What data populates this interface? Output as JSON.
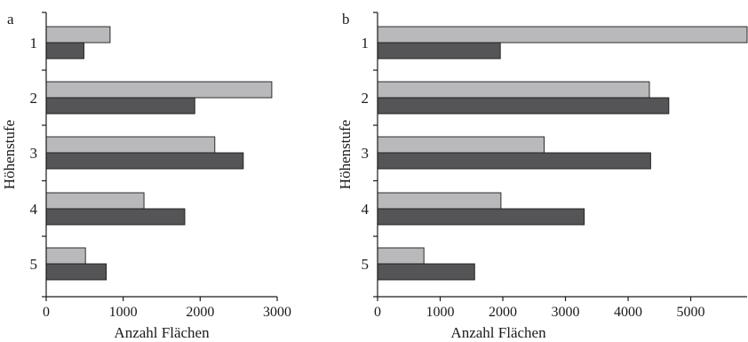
{
  "figure": {
    "ylabel": "Höhenstufe",
    "xlabel": "Anzahl Flächen"
  },
  "chart_data": [
    {
      "panel": "a",
      "type": "bar",
      "orientation": "horizontal",
      "categories": [
        "1",
        "2",
        "3",
        "4",
        "5"
      ],
      "series": [
        {
          "color": "#b9b9bb",
          "values": [
            830,
            2930,
            2190,
            1270,
            510
          ]
        },
        {
          "color": "#555557",
          "values": [
            490,
            1930,
            2560,
            1800,
            780
          ]
        }
      ],
      "xlabel": "Anzahl Flächen",
      "ylabel": "Höhenstufe",
      "xlim": [
        0,
        3000
      ],
      "xticks": [
        0,
        1000,
        2000,
        3000
      ],
      "xtick_labels": [
        "0",
        "1000",
        "2000",
        "3000"
      ],
      "grid": false,
      "legend": "none"
    },
    {
      "panel": "b",
      "type": "bar",
      "orientation": "horizontal",
      "categories": [
        "1",
        "2",
        "3",
        "4",
        "5"
      ],
      "series": [
        {
          "color": "#b9b9bb",
          "values": [
            5900,
            4340,
            2660,
            1970,
            740
          ]
        },
        {
          "color": "#555557",
          "values": [
            1960,
            4650,
            4360,
            3300,
            1550
          ]
        }
      ],
      "xlabel": "Anzahl Flächen",
      "ylabel": "Höhenstufe",
      "xlim": [
        0,
        5900
      ],
      "xticks": [
        0,
        1000,
        2000,
        3000,
        4000,
        5000
      ],
      "xtick_labels": [
        "0",
        "1000",
        "2000",
        "3000",
        "4000",
        "5000"
      ],
      "grid": false,
      "legend": "none"
    }
  ]
}
